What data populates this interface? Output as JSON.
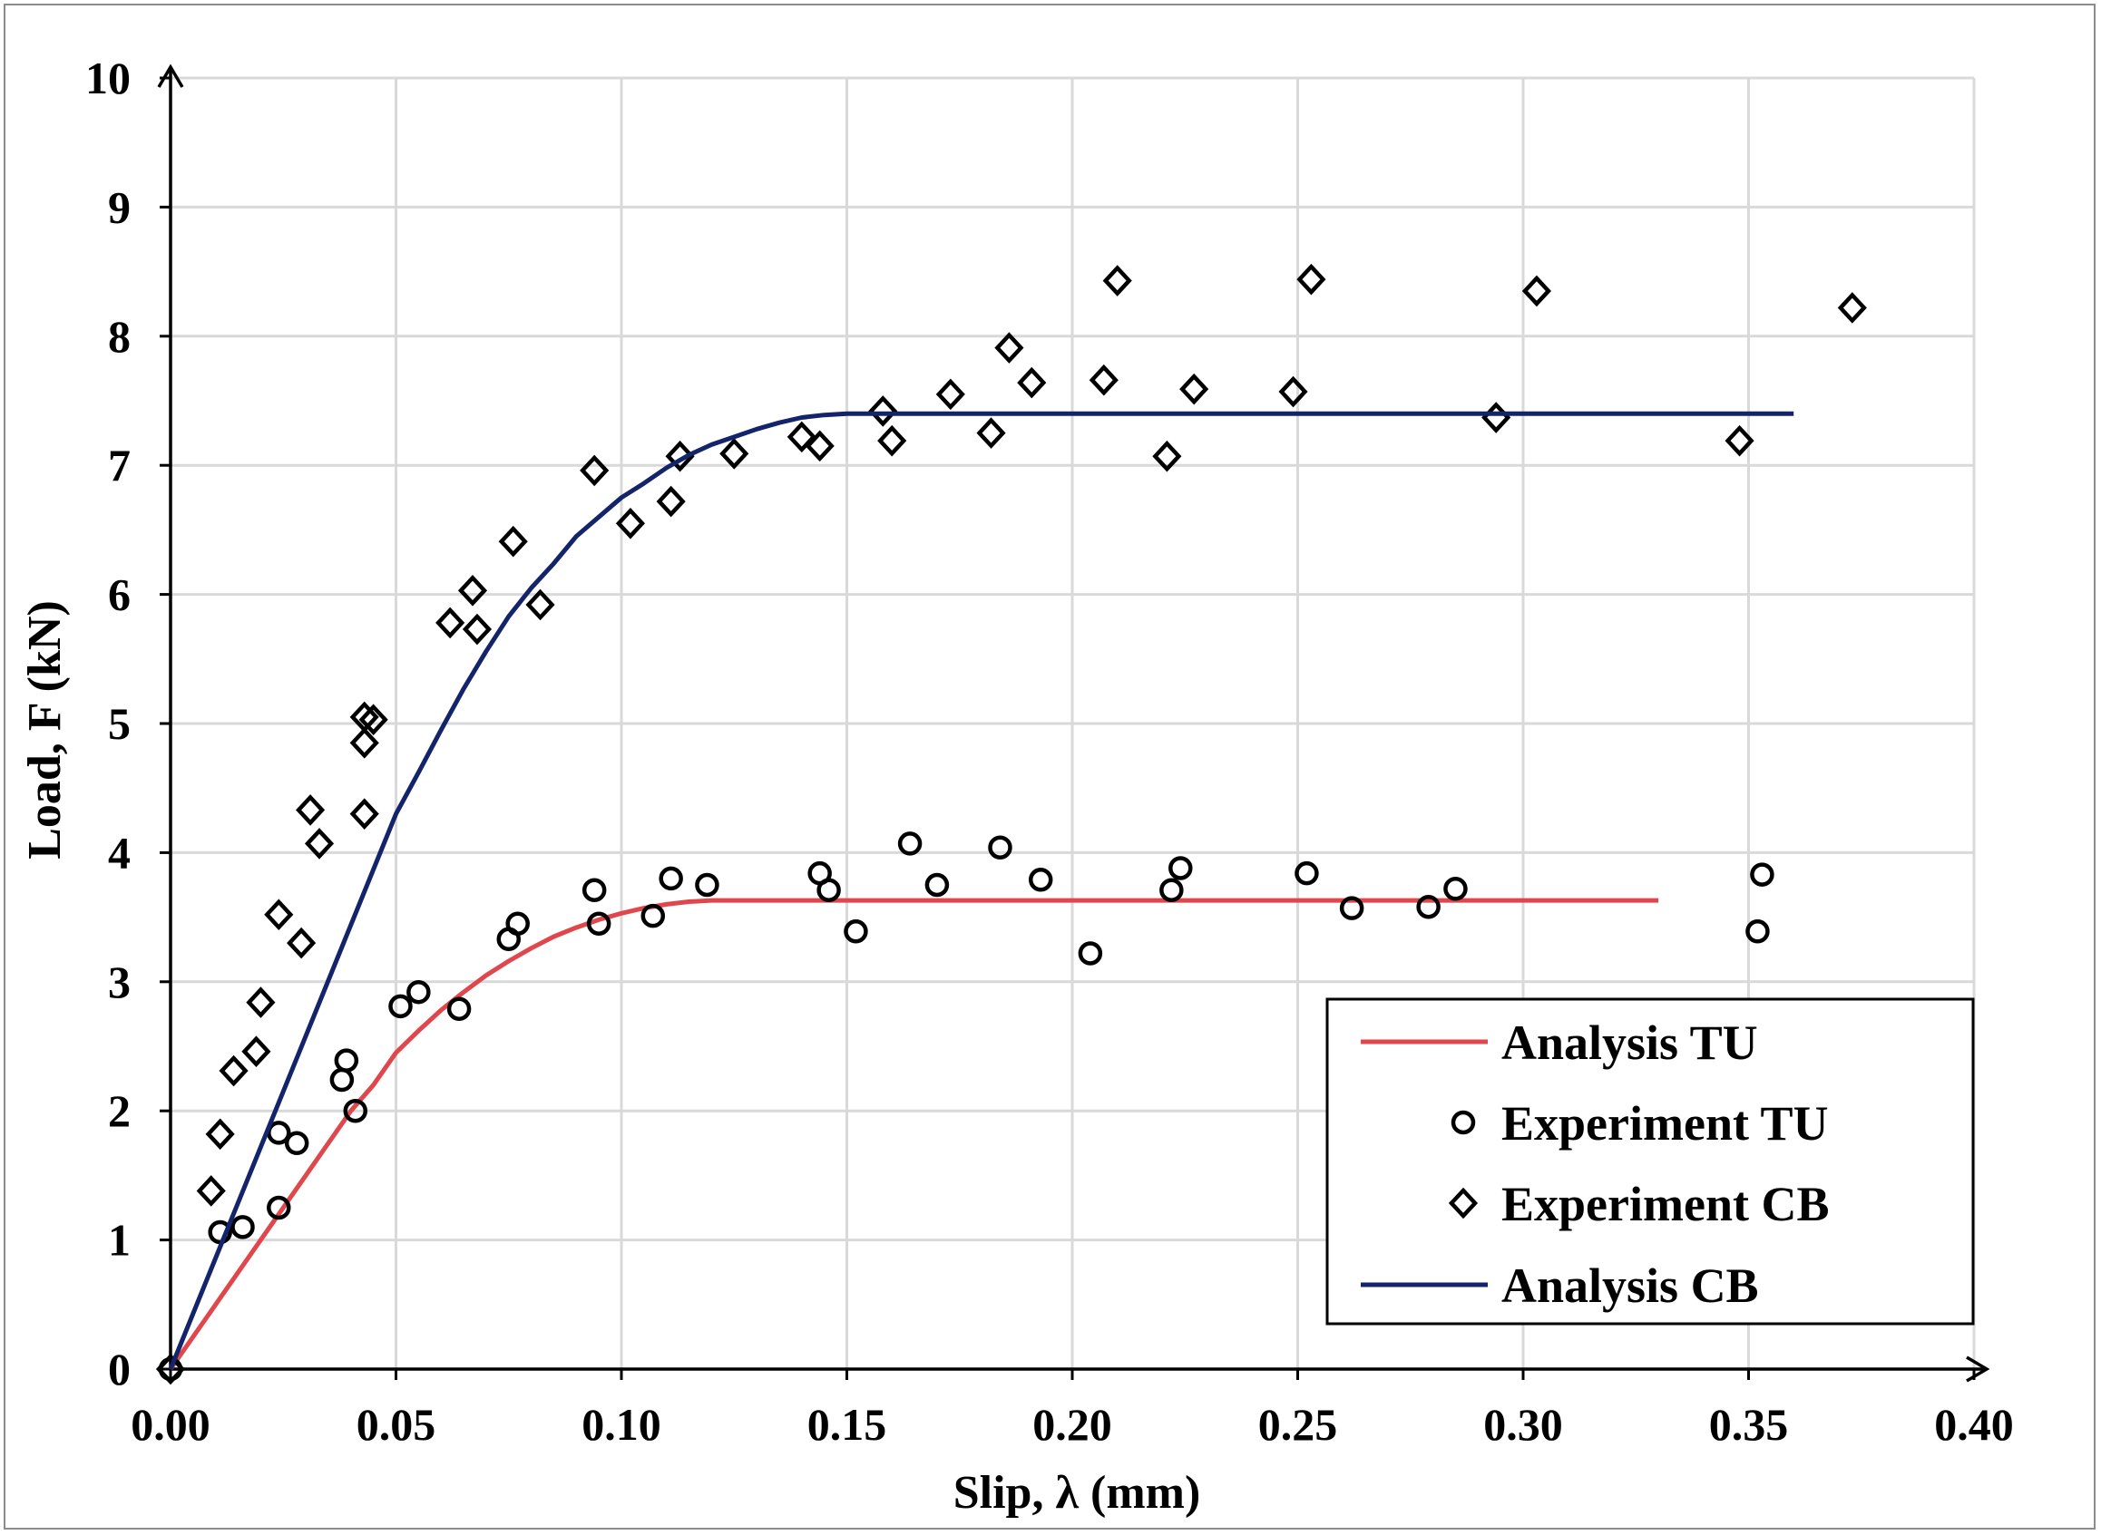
{
  "chart_data": {
    "type": "scatter",
    "title": "",
    "xlabel": "Slip, λ (mm)",
    "ylabel": "Load, F (kN)",
    "xlim": [
      0,
      0.4
    ],
    "ylim": [
      0,
      10
    ],
    "grid": true,
    "legend_position": "bottom-right",
    "x_ticks": [
      {
        "v": 0.0,
        "label": "0.00"
      },
      {
        "v": 0.05,
        "label": "0.05"
      },
      {
        "v": 0.1,
        "label": "0.10"
      },
      {
        "v": 0.15,
        "label": "0.15"
      },
      {
        "v": 0.2,
        "label": "0.20"
      },
      {
        "v": 0.25,
        "label": "0.25"
      },
      {
        "v": 0.3,
        "label": "0.30"
      },
      {
        "v": 0.35,
        "label": "0.35"
      },
      {
        "v": 0.4,
        "label": "0.40"
      }
    ],
    "y_ticks": [
      {
        "v": 0,
        "label": "0"
      },
      {
        "v": 1,
        "label": "1"
      },
      {
        "v": 2,
        "label": "2"
      },
      {
        "v": 3,
        "label": "3"
      },
      {
        "v": 4,
        "label": "4"
      },
      {
        "v": 5,
        "label": "5"
      },
      {
        "v": 6,
        "label": "6"
      },
      {
        "v": 7,
        "label": "7"
      },
      {
        "v": 8,
        "label": "8"
      },
      {
        "v": 9,
        "label": "9"
      },
      {
        "v": 10,
        "label": "10"
      }
    ],
    "series": [
      {
        "name": "Analysis TU",
        "kind": "line",
        "color": "#e0474c",
        "points": [
          [
            0,
            0
          ],
          [
            0.01,
            0.5
          ],
          [
            0.02,
            1.0
          ],
          [
            0.03,
            1.5
          ],
          [
            0.04,
            2.0
          ],
          [
            0.045,
            2.2
          ],
          [
            0.05,
            2.45
          ],
          [
            0.055,
            2.62
          ],
          [
            0.06,
            2.78
          ],
          [
            0.065,
            2.92
          ],
          [
            0.07,
            3.05
          ],
          [
            0.075,
            3.16
          ],
          [
            0.08,
            3.26
          ],
          [
            0.085,
            3.35
          ],
          [
            0.09,
            3.42
          ],
          [
            0.095,
            3.48
          ],
          [
            0.1,
            3.53
          ],
          [
            0.105,
            3.57
          ],
          [
            0.11,
            3.6
          ],
          [
            0.115,
            3.62
          ],
          [
            0.12,
            3.63
          ],
          [
            0.33,
            3.63
          ]
        ]
      },
      {
        "name": "Experiment TU",
        "kind": "scatter",
        "marker": "circle",
        "color": "#000000",
        "points": [
          [
            0,
            0
          ],
          [
            0.011,
            1.06
          ],
          [
            0.016,
            1.1
          ],
          [
            0.024,
            1.25
          ],
          [
            0.024,
            1.83
          ],
          [
            0.028,
            1.75
          ],
          [
            0.038,
            2.24
          ],
          [
            0.039,
            2.39
          ],
          [
            0.041,
            2.0
          ],
          [
            0.051,
            2.81
          ],
          [
            0.055,
            2.92
          ],
          [
            0.064,
            2.79
          ],
          [
            0.075,
            3.33
          ],
          [
            0.077,
            3.45
          ],
          [
            0.094,
            3.71
          ],
          [
            0.095,
            3.45
          ],
          [
            0.107,
            3.51
          ],
          [
            0.111,
            3.8
          ],
          [
            0.119,
            3.75
          ],
          [
            0.144,
            3.84
          ],
          [
            0.146,
            3.71
          ],
          [
            0.152,
            3.39
          ],
          [
            0.164,
            4.07
          ],
          [
            0.17,
            3.75
          ],
          [
            0.184,
            4.04
          ],
          [
            0.193,
            3.79
          ],
          [
            0.204,
            3.22
          ],
          [
            0.222,
            3.71
          ],
          [
            0.224,
            3.88
          ],
          [
            0.252,
            3.84
          ],
          [
            0.262,
            3.57
          ],
          [
            0.279,
            3.58
          ],
          [
            0.285,
            3.72
          ],
          [
            0.352,
            3.39
          ],
          [
            0.353,
            3.83
          ]
        ]
      },
      {
        "name": "Experiment CB",
        "kind": "scatter",
        "marker": "diamond",
        "color": "#000000",
        "points": [
          [
            0,
            0
          ],
          [
            0.009,
            1.38
          ],
          [
            0.011,
            1.82
          ],
          [
            0.014,
            2.31
          ],
          [
            0.019,
            2.46
          ],
          [
            0.02,
            2.84
          ],
          [
            0.024,
            3.52
          ],
          [
            0.029,
            3.3
          ],
          [
            0.031,
            4.33
          ],
          [
            0.033,
            4.07
          ],
          [
            0.043,
            4.3
          ],
          [
            0.043,
            4.85
          ],
          [
            0.043,
            5.05
          ],
          [
            0.045,
            5.03
          ],
          [
            0.062,
            5.78
          ],
          [
            0.067,
            6.03
          ],
          [
            0.068,
            5.73
          ],
          [
            0.076,
            6.41
          ],
          [
            0.082,
            5.92
          ],
          [
            0.094,
            6.96
          ],
          [
            0.102,
            6.55
          ],
          [
            0.111,
            6.72
          ],
          [
            0.113,
            7.07
          ],
          [
            0.125,
            7.09
          ],
          [
            0.14,
            7.22
          ],
          [
            0.144,
            7.15
          ],
          [
            0.158,
            7.42
          ],
          [
            0.16,
            7.19
          ],
          [
            0.173,
            7.55
          ],
          [
            0.182,
            7.25
          ],
          [
            0.186,
            7.91
          ],
          [
            0.191,
            7.64
          ],
          [
            0.207,
            7.66
          ],
          [
            0.21,
            8.43
          ],
          [
            0.221,
            7.07
          ],
          [
            0.227,
            7.59
          ],
          [
            0.249,
            7.57
          ],
          [
            0.253,
            8.44
          ],
          [
            0.294,
            7.37
          ],
          [
            0.303,
            8.35
          ],
          [
            0.348,
            7.19
          ],
          [
            0.373,
            8.22
          ]
        ]
      },
      {
        "name": "Analysis CB",
        "kind": "line",
        "color": "#13246b",
        "points": [
          [
            0,
            0
          ],
          [
            0.01,
            0.86
          ],
          [
            0.02,
            1.72
          ],
          [
            0.03,
            2.58
          ],
          [
            0.04,
            3.44
          ],
          [
            0.05,
            4.3
          ],
          [
            0.055,
            4.62
          ],
          [
            0.06,
            4.95
          ],
          [
            0.065,
            5.27
          ],
          [
            0.07,
            5.56
          ],
          [
            0.075,
            5.83
          ],
          [
            0.08,
            6.05
          ],
          [
            0.085,
            6.24
          ],
          [
            0.09,
            6.45
          ],
          [
            0.095,
            6.6
          ],
          [
            0.1,
            6.75
          ],
          [
            0.105,
            6.86
          ],
          [
            0.11,
            6.98
          ],
          [
            0.115,
            7.08
          ],
          [
            0.12,
            7.16
          ],
          [
            0.125,
            7.22
          ],
          [
            0.13,
            7.28
          ],
          [
            0.135,
            7.33
          ],
          [
            0.14,
            7.37
          ],
          [
            0.145,
            7.39
          ],
          [
            0.15,
            7.4
          ],
          [
            0.36,
            7.4
          ]
        ]
      }
    ]
  },
  "legend": {
    "items": [
      {
        "label": "Analysis TU",
        "symbol": "line",
        "color": "#e0474c"
      },
      {
        "label": "Experiment TU",
        "symbol": "circle",
        "color": "#000000"
      },
      {
        "label": "Experiment CB",
        "symbol": "diamond",
        "color": "#000000"
      },
      {
        "label": "Analysis CB",
        "symbol": "line",
        "color": "#13246b"
      }
    ]
  },
  "colors": {
    "grid": "#d9d9d9",
    "axis": "#000000",
    "frame": "#8c8c8c"
  }
}
